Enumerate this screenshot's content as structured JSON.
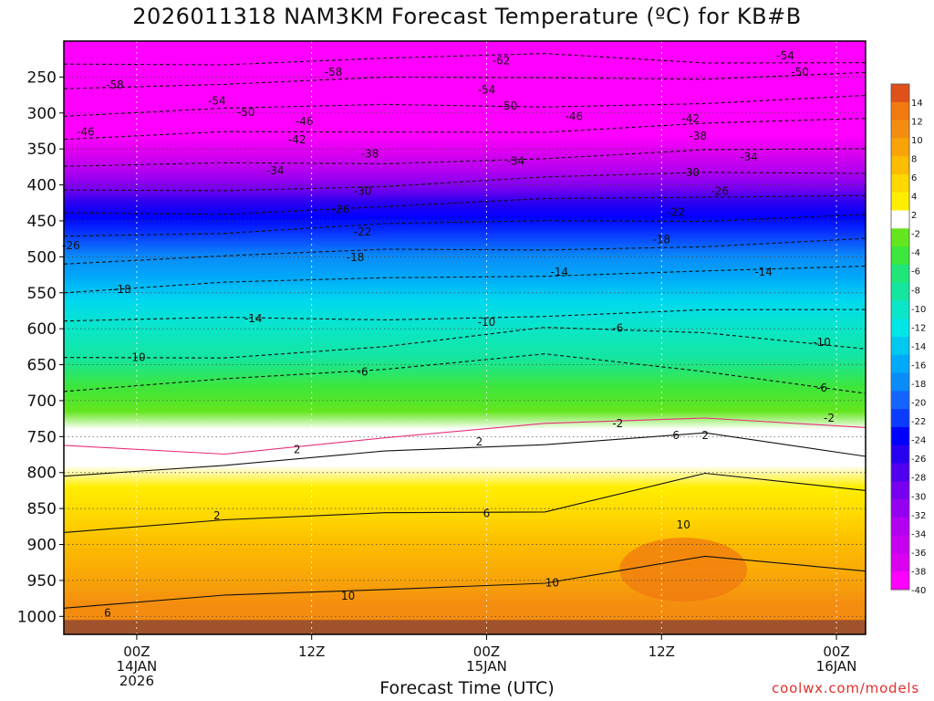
{
  "title": "2026011318 NAM3KM Forecast Temperature (ºC) for KB#B",
  "credit": "coolwx.com/models",
  "chart_data": {
    "type": "heatmap",
    "title": "2026011318 NAM3KM Forecast Temperature (ºC) for KB#B",
    "xlabel": "Forecast Time (UTC)",
    "ylabel": "",
    "x_unit": "forecast hour",
    "x_range": [
      -5,
      50
    ],
    "y_unit": "hPa",
    "y_range": [
      200,
      1025
    ],
    "y_ticks": [
      250,
      300,
      350,
      400,
      450,
      500,
      550,
      600,
      650,
      700,
      750,
      800,
      850,
      900,
      950,
      1000
    ],
    "x_ticks": [
      {
        "x": 0,
        "lines": [
          "00Z",
          "14JAN",
          "2026"
        ]
      },
      {
        "x": 12,
        "lines": [
          "12Z"
        ]
      },
      {
        "x": 24,
        "lines": [
          "00Z",
          "15JAN"
        ]
      },
      {
        "x": 36,
        "lines": [
          "12Z"
        ]
      },
      {
        "x": 48,
        "lines": [
          "00Z",
          "16JAN"
        ]
      }
    ],
    "colorbar_labels": [
      "14",
      "12",
      "10",
      "8",
      "6",
      "4",
      "2",
      "-2",
      "-4",
      "-6",
      "-8",
      "-10",
      "-12",
      "-14",
      "-16",
      "-18",
      "-20",
      "-22",
      "-24",
      "-26",
      "-28",
      "-30",
      "-32",
      "-34",
      "-36",
      "-38",
      "-40"
    ],
    "color_scale": [
      {
        "t": 14,
        "color": "#e0501a"
      },
      {
        "t": 12,
        "color": "#f07a10"
      },
      {
        "t": 10,
        "color": "#f48c10"
      },
      {
        "t": 8,
        "color": "#f8a408"
      },
      {
        "t": 6,
        "color": "#fcbc00"
      },
      {
        "t": 4,
        "color": "#ffd800"
      },
      {
        "t": 2,
        "color": "#ffee00"
      },
      {
        "t": 0,
        "color": "#ffffff"
      },
      {
        "t": -2,
        "color": "#64e61e"
      },
      {
        "t": -4,
        "color": "#3ce63c"
      },
      {
        "t": -6,
        "color": "#1ee678"
      },
      {
        "t": -8,
        "color": "#14e6a0"
      },
      {
        "t": -10,
        "color": "#0ae6c8"
      },
      {
        "t": -12,
        "color": "#00e6e6"
      },
      {
        "t": -14,
        "color": "#00c8f0"
      },
      {
        "t": -16,
        "color": "#00aaf8"
      },
      {
        "t": -18,
        "color": "#0a8cf8"
      },
      {
        "t": -20,
        "color": "#1464ff"
      },
      {
        "t": -22,
        "color": "#0a3cff"
      },
      {
        "t": -24,
        "color": "#0000ff"
      },
      {
        "t": -26,
        "color": "#2800f0"
      },
      {
        "t": -28,
        "color": "#5000f0"
      },
      {
        "t": -30,
        "color": "#7800f0"
      },
      {
        "t": -32,
        "color": "#9600f0"
      },
      {
        "t": -34,
        "color": "#b400f0"
      },
      {
        "t": -36,
        "color": "#c800f0"
      },
      {
        "t": -38,
        "color": "#dc00f0"
      },
      {
        "t": -40,
        "color": "#ff00ff"
      }
    ],
    "contour_labels": [
      {
        "text": "-62",
        "x": 25.0,
        "p": 227
      },
      {
        "text": "-54",
        "x": 44.5,
        "p": 220
      },
      {
        "text": "-58",
        "x": 13.5,
        "p": 243
      },
      {
        "text": "-50",
        "x": 45.5,
        "p": 243
      },
      {
        "text": "-58",
        "x": -1.5,
        "p": 261
      },
      {
        "text": "-54",
        "x": 24.0,
        "p": 268
      },
      {
        "text": "-54",
        "x": 5.5,
        "p": 283
      },
      {
        "text": "-50",
        "x": 25.5,
        "p": 290
      },
      {
        "text": "-50",
        "x": 7.5,
        "p": 299
      },
      {
        "text": "-46",
        "x": 30.0,
        "p": 305
      },
      {
        "text": "-46",
        "x": 11.5,
        "p": 312
      },
      {
        "text": "-42",
        "x": 38.0,
        "p": 308
      },
      {
        "text": "-46",
        "x": -3.5,
        "p": 326
      },
      {
        "text": "-42",
        "x": 11.0,
        "p": 337
      },
      {
        "text": "-38",
        "x": 38.5,
        "p": 332
      },
      {
        "text": "-38",
        "x": 16.0,
        "p": 357
      },
      {
        "text": "-34",
        "x": 42.0,
        "p": 361
      },
      {
        "text": "-34",
        "x": 26.0,
        "p": 367
      },
      {
        "text": "-34",
        "x": 9.5,
        "p": 380
      },
      {
        "text": "-30",
        "x": 38.0,
        "p": 383
      },
      {
        "text": "-30",
        "x": 15.5,
        "p": 409
      },
      {
        "text": "-26",
        "x": 40.0,
        "p": 409
      },
      {
        "text": "-26",
        "x": 14.0,
        "p": 434
      },
      {
        "text": "-22",
        "x": 37.0,
        "p": 438
      },
      {
        "text": "-22",
        "x": 15.5,
        "p": 465
      },
      {
        "text": "-18",
        "x": 36.0,
        "p": 476
      },
      {
        "text": "-26",
        "x": -4.5,
        "p": 484
      },
      {
        "text": "-18",
        "x": 15.0,
        "p": 501
      },
      {
        "text": "-14",
        "x": 29.0,
        "p": 521
      },
      {
        "text": "-14",
        "x": 43.0,
        "p": 521
      },
      {
        "text": "-18",
        "x": -1.0,
        "p": 545
      },
      {
        "text": "-14",
        "x": 8.0,
        "p": 586
      },
      {
        "text": "-10",
        "x": 24.0,
        "p": 591
      },
      {
        "text": "-6",
        "x": 33.0,
        "p": 599
      },
      {
        "text": "-10",
        "x": 47.0,
        "p": 619
      },
      {
        "text": "-10",
        "x": 0.0,
        "p": 640
      },
      {
        "text": "-6",
        "x": 15.5,
        "p": 660
      },
      {
        "text": "-6",
        "x": 47.0,
        "p": 682
      },
      {
        "text": "-2",
        "x": 47.5,
        "p": 724
      },
      {
        "text": "-2",
        "x": 33.0,
        "p": 732
      },
      {
        "text": "2",
        "x": 11.0,
        "p": 768
      },
      {
        "text": "2",
        "x": 23.5,
        "p": 757
      },
      {
        "text": "6",
        "x": 37.0,
        "p": 748
      },
      {
        "text": "2",
        "x": 39.0,
        "p": 748
      },
      {
        "text": "2",
        "x": 5.5,
        "p": 860
      },
      {
        "text": "6",
        "x": 24.0,
        "p": 857
      },
      {
        "text": "10",
        "x": 37.5,
        "p": 873
      },
      {
        "text": "10",
        "x": 28.5,
        "p": 953
      },
      {
        "text": "10",
        "x": 14.5,
        "p": 972
      },
      {
        "text": "6",
        "x": -2.0,
        "p": 995
      }
    ]
  },
  "colors": {
    "ground": "#a0522d",
    "freezing_line": "#e8307a",
    "contour": "#111111"
  }
}
